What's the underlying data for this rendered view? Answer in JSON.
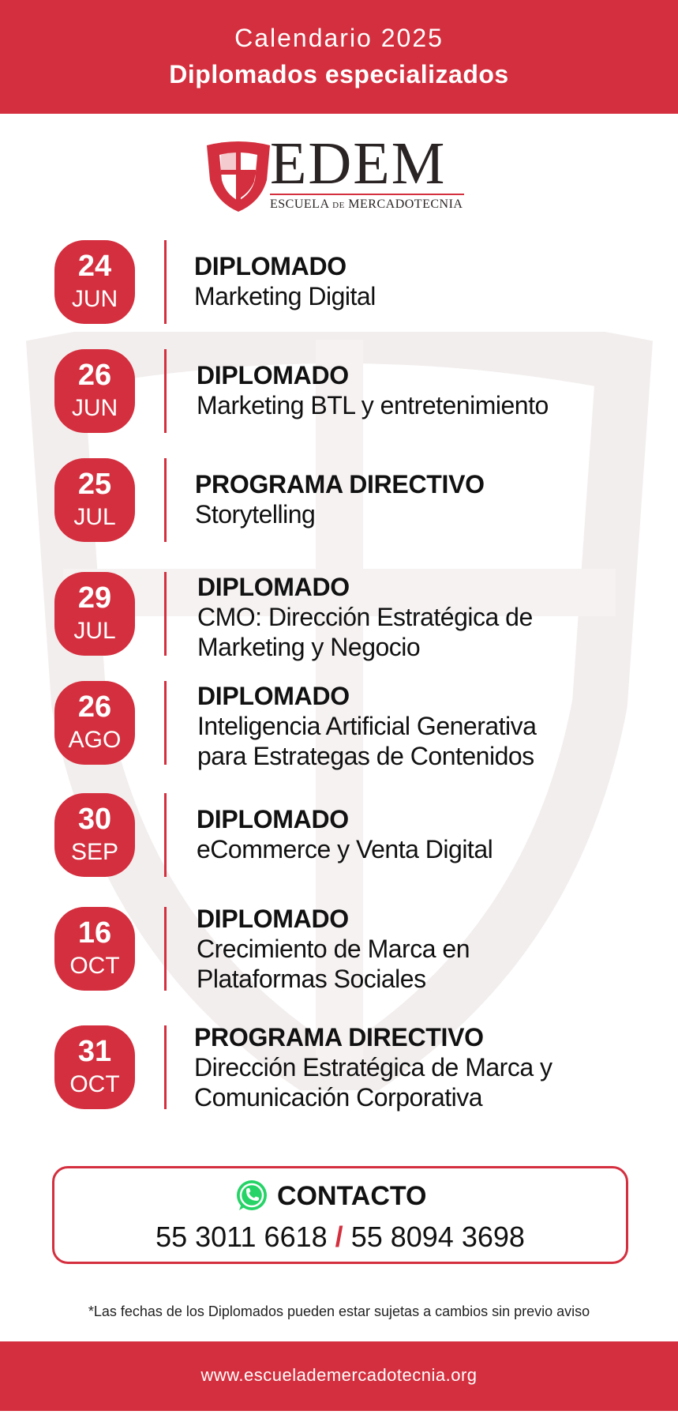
{
  "header": {
    "subtitle": "Calendario 2025",
    "title": "Diplomados especializados"
  },
  "logo": {
    "wordmark": "EDEM",
    "tagline_a": "ESCUELA",
    "tagline_b": "DE",
    "tagline_c": "MERCADOTECNIA"
  },
  "events": [
    {
      "day": "24",
      "month": "JUN",
      "type": "DIPLOMADO",
      "name_lines": [
        "Marketing Digital"
      ]
    },
    {
      "day": "26",
      "month": "JUN",
      "type": "DIPLOMADO",
      "name_lines": [
        "Marketing BTL y entretenimiento"
      ]
    },
    {
      "day": "25",
      "month": "JUL",
      "type": "PROGRAMA DIRECTIVO",
      "name_lines": [
        "Storytelling"
      ]
    },
    {
      "day": "29",
      "month": "JUL",
      "type": "DIPLOMADO",
      "name_lines": [
        "CMO: Dirección Estratégica de",
        "Marketing y Negocio"
      ]
    },
    {
      "day": "26",
      "month": "AGO",
      "type": "DIPLOMADO",
      "name_lines": [
        "Inteligencia Artificial Generativa",
        "para Estrategas de Contenidos"
      ]
    },
    {
      "day": "30",
      "month": "SEP",
      "type": "DIPLOMADO",
      "name_lines": [
        "eCommerce y Venta Digital"
      ]
    },
    {
      "day": "16",
      "month": "OCT",
      "type": "DIPLOMADO",
      "name_lines": [
        "Crecimiento de Marca en",
        "Plataformas Sociales"
      ]
    },
    {
      "day": "31",
      "month": "OCT",
      "type": "PROGRAMA DIRECTIVO",
      "name_lines": [
        "Dirección Estratégica de Marca y",
        "Comunicación Corporativa"
      ]
    }
  ],
  "contact": {
    "title": "CONTACTO",
    "phone_1": "55 3011 6618",
    "separator": "/",
    "phone_2": "55 8094 3698",
    "icon": "whatsapp-icon"
  },
  "disclaimer": "*Las fechas de los Diplomados pueden estar sujetas a cambios sin previo aviso",
  "footer": {
    "url": "www.escuelademercadotecnia.org"
  },
  "colors": {
    "brand_red": "#d42f3e",
    "text_dark": "#111111",
    "whatsapp_green": "#25d366"
  }
}
